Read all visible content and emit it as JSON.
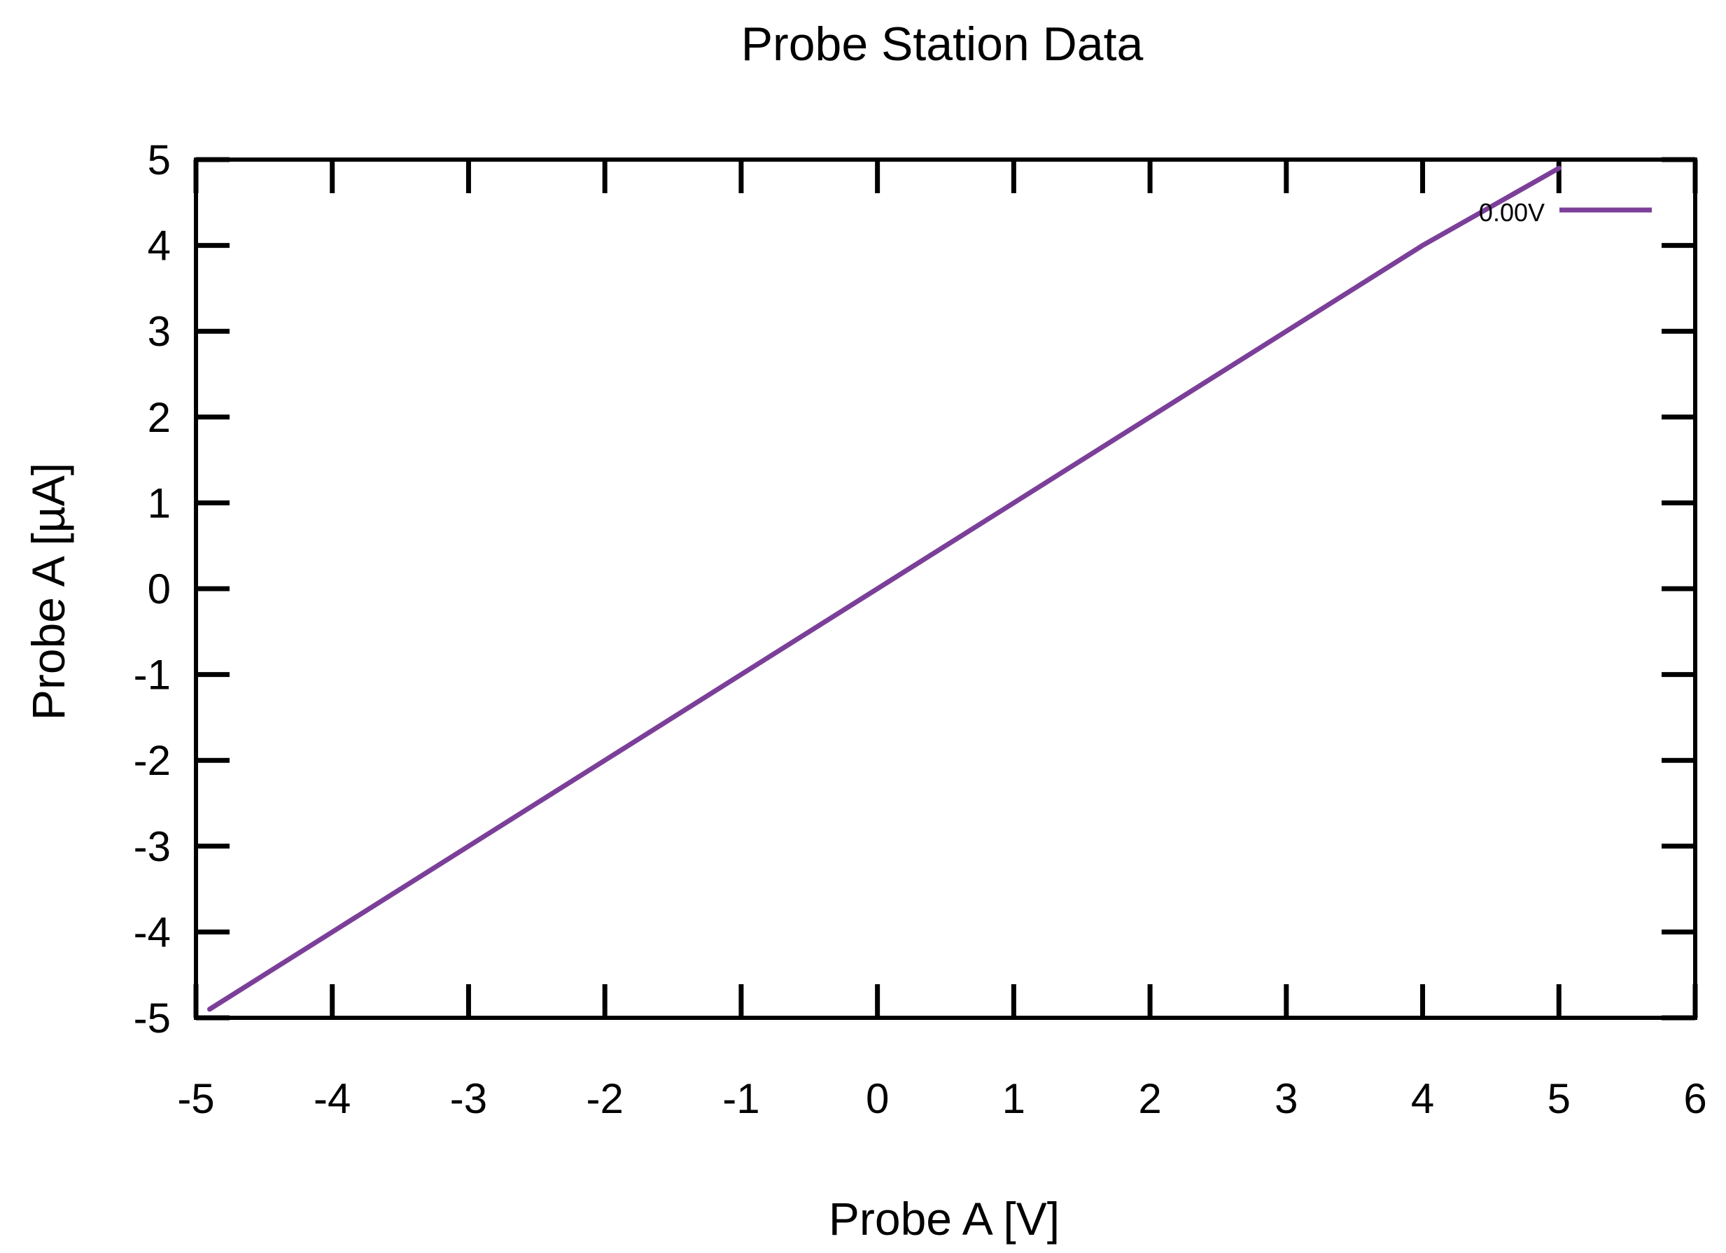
{
  "chart_data": {
    "type": "line",
    "title": "Probe Station Data",
    "xlabel": "Probe A [V]",
    "ylabel": "Probe A [µA]",
    "xlim": [
      -5,
      6
    ],
    "ylim": [
      -5,
      5
    ],
    "x_ticks": [
      "-5",
      "-4",
      "-3",
      "-2",
      "-1",
      "0",
      "1",
      "2",
      "3",
      "4",
      "5",
      "6"
    ],
    "y_ticks": [
      "5",
      "4",
      "3",
      "2",
      "1",
      "0",
      "-1",
      "-2",
      "-3",
      "-4",
      "-5"
    ],
    "grid": false,
    "legend_position": "top-right",
    "series": [
      {
        "name": "0.00V",
        "color": "#7b3f99",
        "x": [
          -4.9,
          -4,
          -3,
          -2,
          -1,
          0,
          1,
          2,
          3,
          4,
          5
        ],
        "y": [
          -4.9,
          -4,
          -3,
          -2,
          -1,
          0,
          1,
          2,
          3,
          4,
          4.9
        ]
      }
    ]
  }
}
